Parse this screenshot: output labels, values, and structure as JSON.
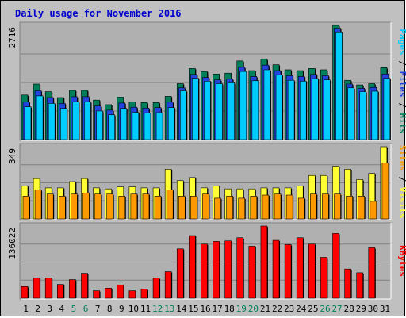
{
  "chart_data": {
    "type": "bar",
    "title": "Daily usage for November 2016",
    "categories": [
      "1",
      "2",
      "3",
      "4",
      "5",
      "6",
      "7",
      "8",
      "9",
      "10",
      "11",
      "12",
      "13",
      "14",
      "15",
      "16",
      "17",
      "18",
      "19",
      "20",
      "21",
      "22",
      "23",
      "24",
      "25",
      "26",
      "27",
      "28",
      "29",
      "30",
      "31"
    ],
    "weekend_days": [
      "5",
      "6",
      "12",
      "13",
      "19",
      "20",
      "26",
      "27"
    ],
    "panels": [
      {
        "name": "pages-files-hits",
        "ymax_label": "2716",
        "ymax": 2716,
        "legend": [
          {
            "text": "Pages",
            "color": "#00ccff"
          },
          {
            "text": " / ",
            "color": "#000000"
          },
          {
            "text": "Files",
            "color": "#2244dd"
          },
          {
            "text": " / ",
            "color": "#000000"
          },
          {
            "text": "Hits",
            "color": "#00805a"
          }
        ],
        "series": [
          {
            "name": "Hits",
            "color": "#00805a",
            "values": [
              1060,
              1320,
              1140,
              1000,
              1170,
              1170,
              940,
              830,
              1010,
              900,
              880,
              880,
              1030,
              1330,
              1690,
              1620,
              1560,
              1580,
              1870,
              1640,
              1910,
              1780,
              1660,
              1640,
              1690,
              1660,
              2716,
              1410,
              1300,
              1330,
              1710
            ]
          },
          {
            "name": "Files",
            "color": "#2244dd",
            "values": [
              900,
              1160,
              1000,
              860,
              1020,
              1020,
              800,
              700,
              870,
              770,
              750,
              760,
              890,
              1230,
              1550,
              1480,
              1420,
              1440,
              1720,
              1500,
              1770,
              1640,
              1520,
              1500,
              1550,
              1520,
              2650,
              1320,
              1220,
              1240,
              1560
            ]
          },
          {
            "name": "Pages",
            "color": "#00ccff",
            "values": [
              780,
              1040,
              860,
              740,
              900,
              900,
              680,
              590,
              740,
              650,
              630,
              640,
              760,
              1160,
              1460,
              1390,
              1330,
              1350,
              1620,
              1400,
              1660,
              1540,
              1410,
              1390,
              1450,
              1420,
              2560,
              1230,
              1140,
              1150,
              1460
            ]
          }
        ]
      },
      {
        "name": "visits-sites",
        "ymax_label": "349",
        "ymax": 349,
        "legend": [
          {
            "text": "Sites",
            "color": "#ff9900"
          },
          {
            "text": " / ",
            "color": "#000000"
          },
          {
            "text": "Visits",
            "color": "#ffff33"
          }
        ],
        "series": [
          {
            "name": "Visits",
            "color": "#ffff33",
            "values": [
              160,
              195,
              150,
              150,
              180,
              195,
              150,
              145,
              155,
              155,
              150,
              150,
              240,
              185,
              200,
              150,
              160,
              145,
              145,
              145,
              150,
              150,
              150,
              160,
              210,
              210,
              255,
              240,
              190,
              220,
              349
            ]
          },
          {
            "name": "Sites",
            "color": "#ff9900",
            "values": [
              110,
              140,
              120,
              110,
              120,
              125,
              120,
              120,
              110,
              120,
              120,
              110,
              140,
              110,
              110,
              120,
              100,
              110,
              100,
              110,
              115,
              120,
              115,
              100,
              120,
              120,
              120,
              110,
              110,
              85,
              270
            ]
          }
        ]
      },
      {
        "name": "kbytes",
        "ymax_label": "136022",
        "ymax": 136022,
        "legend": [
          {
            "text": "KBytes",
            "color": "#ff0000"
          }
        ],
        "series": [
          {
            "name": "KBytes",
            "color": "#ff0000",
            "values": [
              22000,
              38000,
              38000,
              26000,
              35000,
              47000,
              14000,
              19000,
              25000,
              14000,
              17000,
              38000,
              50000,
              93000,
              118000,
              102000,
              107000,
              108000,
              114000,
              98000,
              136022,
              109000,
              101000,
              114000,
              102000,
              77000,
              122000,
              55000,
              48000,
              95000,
              0
            ]
          }
        ]
      }
    ]
  }
}
